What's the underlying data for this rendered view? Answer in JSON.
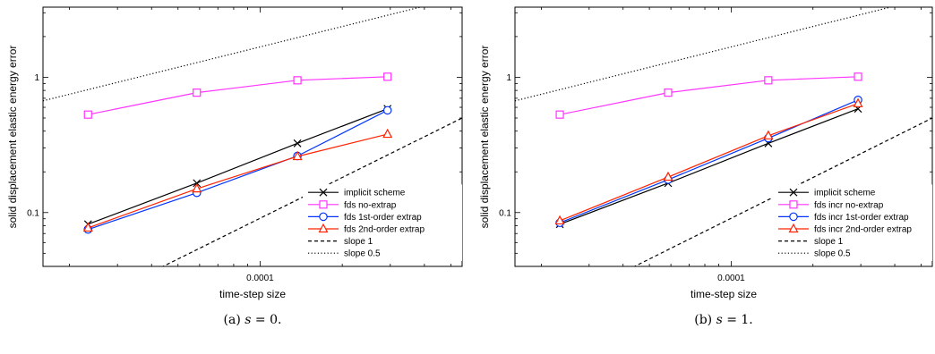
{
  "chart_data": [
    {
      "type": "line",
      "caption_label": "(a)",
      "caption_var": "s",
      "caption_rest": " = 0.",
      "xlabel": "time-step size",
      "ylabel": "solid displacement elastic energy error",
      "xscale": "log",
      "yscale": "log",
      "xlim": [
        1.6e-05,
        0.00055
      ],
      "ylim": [
        0.04,
        3.3
      ],
      "xticks": [
        {
          "value": 0.0001,
          "label": "0.0001"
        }
      ],
      "yticks": [
        {
          "value": 0.1,
          "label": "0.1"
        },
        {
          "value": 1,
          "label": "1"
        }
      ],
      "grid": false,
      "legend_position": "lower-right",
      "series": [
        {
          "name": "implicit scheme",
          "color": "#000000",
          "marker": "x",
          "linestyle": "solid",
          "x": [
            2.34e-05,
            5.86e-05,
            0.000137,
            0.000293
          ],
          "y": [
            0.082,
            0.165,
            0.325,
            0.585
          ]
        },
        {
          "name": "fds no-extrap",
          "color": "#ff33ff",
          "marker": "square",
          "linestyle": "solid",
          "x": [
            2.34e-05,
            5.86e-05,
            0.000137,
            0.000293
          ],
          "y": [
            0.53,
            0.77,
            0.95,
            1.01
          ]
        },
        {
          "name": "fds 1st-order extrap",
          "color": "#0033ff",
          "marker": "circle",
          "linestyle": "solid",
          "x": [
            2.34e-05,
            5.86e-05,
            0.000137,
            0.000293
          ],
          "y": [
            0.075,
            0.14,
            0.262,
            0.57
          ]
        },
        {
          "name": "fds 2nd-order extrap",
          "color": "#ff2200",
          "marker": "triangle",
          "linestyle": "solid",
          "x": [
            2.34e-05,
            5.86e-05,
            0.000137,
            0.000293
          ],
          "y": [
            0.077,
            0.15,
            0.26,
            0.38
          ]
        },
        {
          "name": "slope 1",
          "color": "#000000",
          "marker": "none",
          "linestyle": "dashed",
          "x": [
            1.6e-05,
            0.00055
          ],
          "y": [
            0.0145,
            0.5
          ]
        },
        {
          "name": "slope 0.5",
          "color": "#000000",
          "marker": "none",
          "linestyle": "dotted",
          "x": [
            1.6e-05,
            0.00055
          ],
          "y": [
            0.67,
            3.94
          ]
        }
      ]
    },
    {
      "type": "line",
      "caption_label": "(b)",
      "caption_var": "s",
      "caption_rest": " = 1.",
      "xlabel": "time-step size",
      "ylabel": "solid displacement elastic energy error",
      "xscale": "log",
      "yscale": "log",
      "xlim": [
        1.6e-05,
        0.00055
      ],
      "ylim": [
        0.04,
        3.3
      ],
      "xticks": [
        {
          "value": 0.0001,
          "label": "0.0001"
        }
      ],
      "yticks": [
        {
          "value": 0.1,
          "label": "0.1"
        },
        {
          "value": 1,
          "label": "1"
        }
      ],
      "grid": false,
      "legend_position": "lower-right",
      "series": [
        {
          "name": "implicit scheme",
          "color": "#000000",
          "marker": "x",
          "linestyle": "solid",
          "x": [
            2.34e-05,
            5.86e-05,
            0.000137,
            0.000293
          ],
          "y": [
            0.082,
            0.165,
            0.325,
            0.585
          ]
        },
        {
          "name": "fds incr no-extrap",
          "color": "#ff33ff",
          "marker": "square",
          "linestyle": "solid",
          "x": [
            2.34e-05,
            5.86e-05,
            0.000137,
            0.000293
          ],
          "y": [
            0.53,
            0.77,
            0.95,
            1.01
          ]
        },
        {
          "name": "fds incr 1st-order extrap",
          "color": "#0033ff",
          "marker": "circle",
          "linestyle": "solid",
          "x": [
            2.34e-05,
            5.86e-05,
            0.000137,
            0.000293
          ],
          "y": [
            0.084,
            0.175,
            0.355,
            0.68
          ]
        },
        {
          "name": "fds incr 2nd-order extrap",
          "color": "#ff2200",
          "marker": "triangle",
          "linestyle": "solid",
          "x": [
            2.34e-05,
            5.86e-05,
            0.000137,
            0.000293
          ],
          "y": [
            0.087,
            0.183,
            0.37,
            0.64
          ]
        },
        {
          "name": "slope 1",
          "color": "#000000",
          "marker": "none",
          "linestyle": "dashed",
          "x": [
            1.6e-05,
            0.00055
          ],
          "y": [
            0.0145,
            0.5
          ]
        },
        {
          "name": "slope 0.5",
          "color": "#000000",
          "marker": "none",
          "linestyle": "dotted",
          "x": [
            1.6e-05,
            0.00055
          ],
          "y": [
            0.67,
            3.94
          ]
        }
      ]
    }
  ]
}
